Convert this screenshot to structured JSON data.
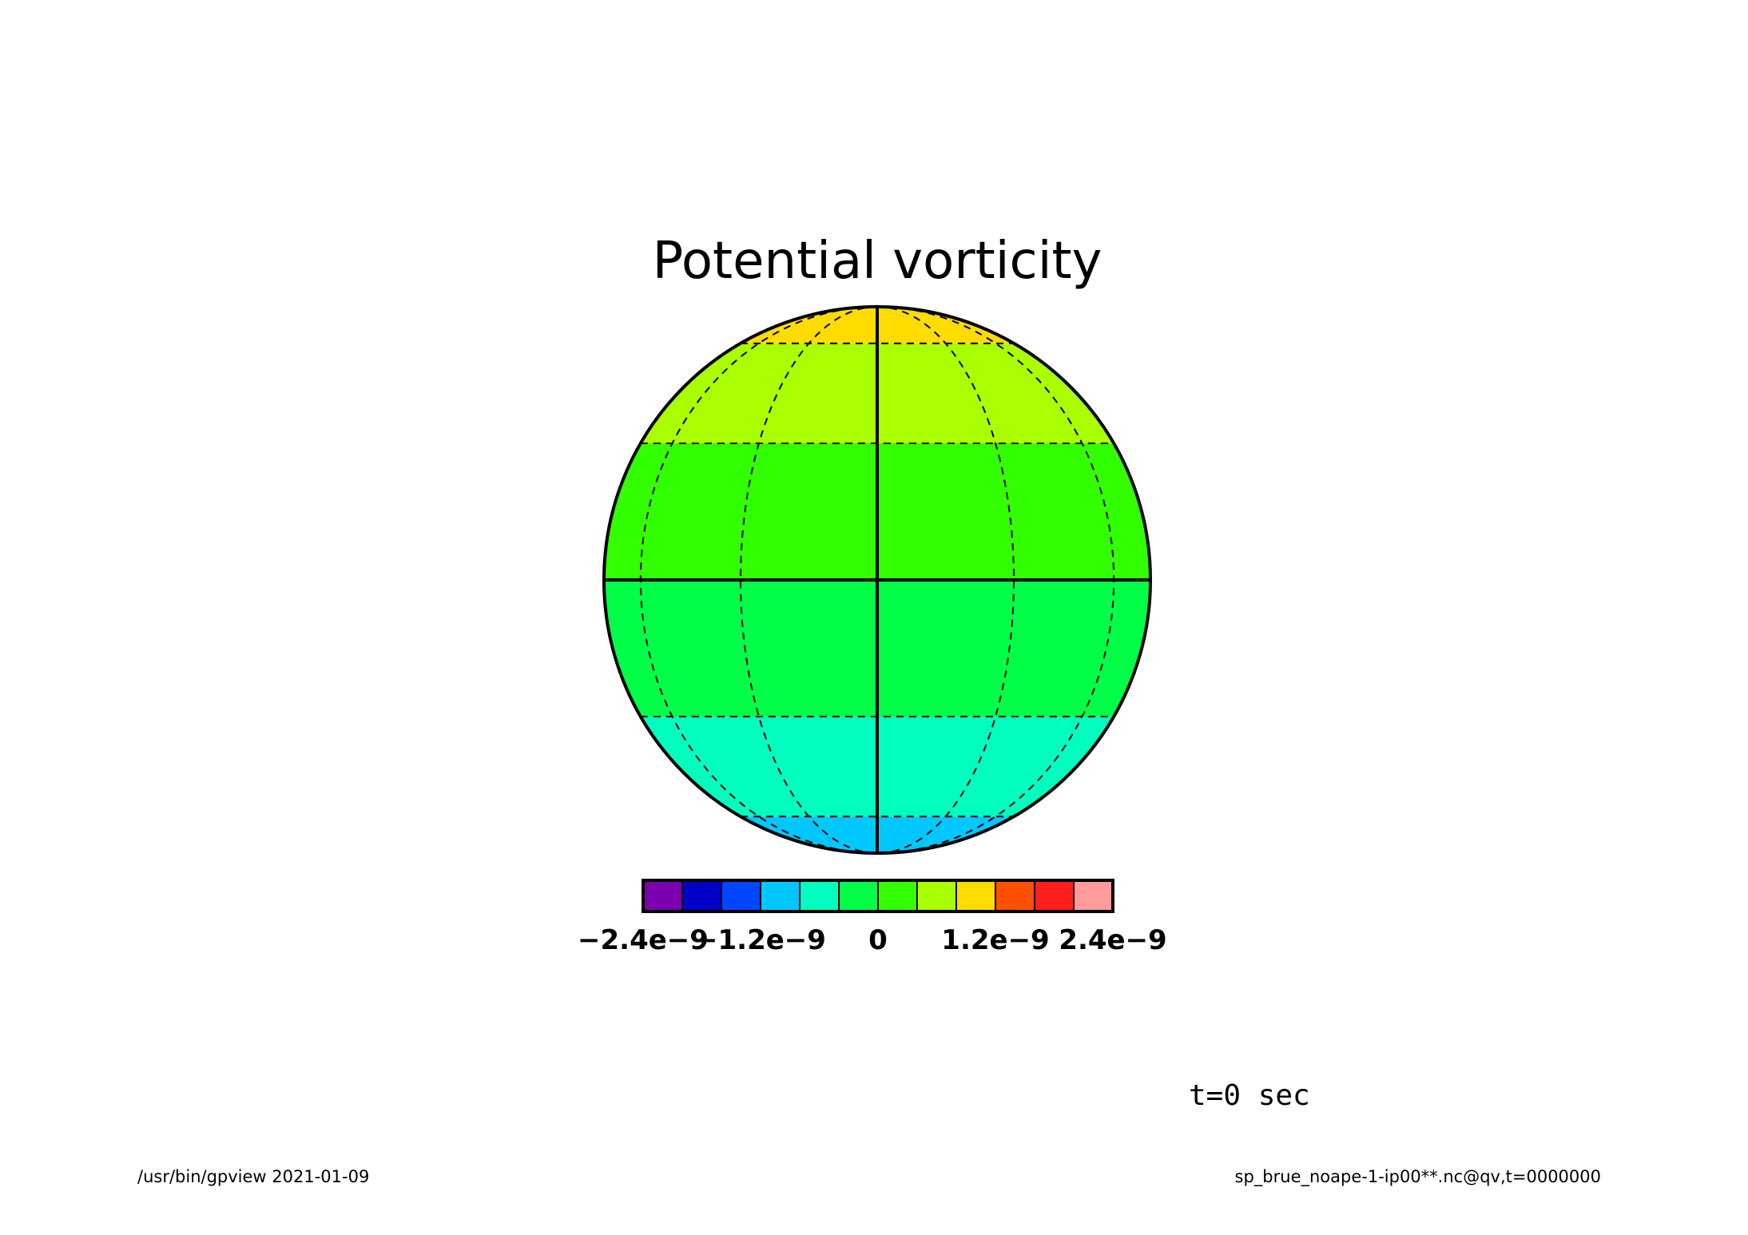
{
  "chart_data": {
    "type": "heatmap",
    "projection": "orthographic",
    "title": "Potential vorticity",
    "grid": true,
    "colorbar": {
      "position": "bottom",
      "colors": [
        "#7a00b0",
        "#0000c8",
        "#0046ff",
        "#00c8ff",
        "#00ffbe",
        "#00ff46",
        "#32ff00",
        "#aaff00",
        "#ffdc00",
        "#ff5000",
        "#ff1e1e",
        "#ff9b9b"
      ],
      "boundaries": [
        -2.4e-09,
        -2e-09,
        -1.6e-09,
        -1.2e-09,
        -8e-10,
        -4e-10,
        0,
        4e-10,
        8e-10,
        1.2e-09,
        1.6e-09,
        2e-09,
        2.4e-09
      ],
      "tick_labels": [
        "−2.4e−9",
        "−1.2e−9",
        "0",
        "1.2e−9",
        "2.4e−9"
      ]
    },
    "bands": [
      {
        "lat_range": [
          60,
          90
        ],
        "color": "#ffdc00"
      },
      {
        "lat_range": [
          30,
          60
        ],
        "color": "#aaff00"
      },
      {
        "lat_range": [
          0,
          30
        ],
        "color": "#32ff00"
      },
      {
        "lat_range": [
          -30,
          0
        ],
        "color": "#00ff46"
      },
      {
        "lat_range": [
          -60,
          -30
        ],
        "color": "#00ffbe"
      },
      {
        "lat_range": [
          -90,
          -60
        ],
        "color": "#00c8ff"
      }
    ],
    "graticule": {
      "parallels": [
        -60,
        -30,
        30,
        60
      ],
      "meridians": [
        -60,
        -30,
        30,
        60
      ],
      "solid": [
        "equator",
        "central-meridian"
      ]
    }
  },
  "annotation": "t=0 sec",
  "footer": {
    "left": "/usr/bin/gpview  2021-01-09",
    "right": "sp_brue_noape-1-ip00**.nc@qv,t=0000000"
  }
}
